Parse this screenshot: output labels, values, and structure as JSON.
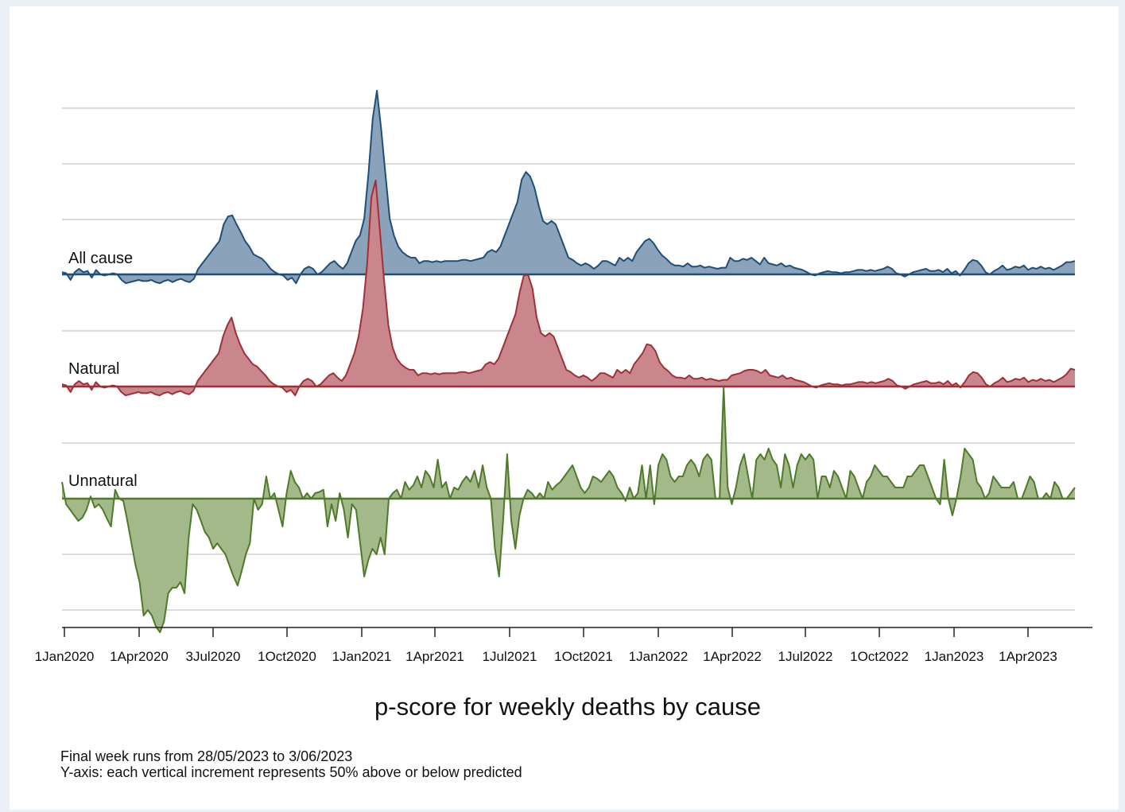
{
  "chart_data": {
    "type": "area",
    "xlabel": "p-score for weekly deaths by cause",
    "x_ticks": [
      "1Jan2020",
      "1Apr2020",
      "3Jul2020",
      "1Oct2020",
      "1Jan2021",
      "1Apr2021",
      "1Jul2021",
      "1Oct2021",
      "1Jan2022",
      "1Apr2022",
      "1Jul2022",
      "1Oct2022",
      "1Jan2023",
      "1Apr2023"
    ],
    "y_increment_percent": 50,
    "grid": true,
    "series": [
      {
        "name": "All cause",
        "color": "#1f4e79",
        "fill": "#8aa3bb",
        "values": [
          0.02,
          0.01,
          -0.05,
          0.02,
          0.05,
          0.02,
          0.03,
          -0.03,
          0.04,
          0.0,
          -0.01,
          0.0,
          0.01,
          0.0,
          -0.05,
          -0.08,
          -0.07,
          -0.06,
          -0.05,
          -0.06,
          -0.06,
          -0.05,
          -0.07,
          -0.08,
          -0.06,
          -0.05,
          -0.07,
          -0.05,
          -0.04,
          -0.06,
          -0.07,
          -0.04,
          0.05,
          0.1,
          0.15,
          0.2,
          0.25,
          0.3,
          0.45,
          0.52,
          0.53,
          0.45,
          0.38,
          0.3,
          0.25,
          0.18,
          0.16,
          0.14,
          0.1,
          0.05,
          0.02,
          0.0,
          -0.01,
          -0.05,
          -0.03,
          -0.08,
          0.0,
          0.05,
          0.07,
          0.05,
          0.0,
          0.02,
          0.06,
          0.1,
          0.12,
          0.08,
          0.05,
          0.1,
          0.2,
          0.3,
          0.35,
          0.5,
          0.9,
          1.4,
          1.65,
          1.3,
          0.9,
          0.5,
          0.35,
          0.25,
          0.2,
          0.17,
          0.15,
          0.15,
          0.1,
          0.12,
          0.12,
          0.11,
          0.12,
          0.11,
          0.12,
          0.12,
          0.12,
          0.12,
          0.13,
          0.13,
          0.12,
          0.13,
          0.14,
          0.15,
          0.2,
          0.22,
          0.2,
          0.25,
          0.35,
          0.45,
          0.55,
          0.65,
          0.85,
          0.92,
          0.88,
          0.78,
          0.62,
          0.48,
          0.45,
          0.48,
          0.45,
          0.35,
          0.25,
          0.15,
          0.13,
          0.1,
          0.08,
          0.1,
          0.08,
          0.05,
          0.08,
          0.12,
          0.12,
          0.1,
          0.08,
          0.15,
          0.12,
          0.15,
          0.12,
          0.2,
          0.25,
          0.3,
          0.32,
          0.28,
          0.22,
          0.17,
          0.14,
          0.1,
          0.08,
          0.08,
          0.07,
          0.1,
          0.07,
          0.07,
          0.08,
          0.06,
          0.07,
          0.06,
          0.05,
          0.06,
          0.06,
          0.15,
          0.12,
          0.12,
          0.14,
          0.13,
          0.15,
          0.12,
          0.09,
          0.15,
          0.1,
          0.09,
          0.08,
          0.1,
          0.07,
          0.08,
          0.06,
          0.05,
          0.04,
          0.02,
          0.0,
          -0.01,
          0.01,
          0.02,
          0.03,
          0.02,
          0.02,
          0.01,
          0.02,
          0.02,
          0.03,
          0.04,
          0.04,
          0.03,
          0.04,
          0.03,
          0.04,
          0.05,
          0.07,
          0.05,
          0.01,
          0.0,
          -0.02,
          0.0,
          0.02,
          0.03,
          0.04,
          0.05,
          0.03,
          0.03,
          0.04,
          0.02,
          0.05,
          0.01,
          0.03,
          -0.01,
          0.04,
          0.1,
          0.13,
          0.12,
          0.08,
          0.02,
          0.0,
          0.03,
          0.05,
          0.08,
          0.04,
          0.05,
          0.07,
          0.06,
          0.08,
          0.04,
          0.06,
          0.05,
          0.07,
          0.05,
          0.06,
          0.04,
          0.06,
          0.08,
          0.11,
          0.11,
          0.12
        ]
      },
      {
        "name": "Natural",
        "color": "#a03038",
        "fill": "#c9878d",
        "values": [
          0.02,
          0.01,
          -0.05,
          0.02,
          0.05,
          0.02,
          0.03,
          -0.03,
          0.04,
          0.0,
          -0.01,
          0.0,
          0.01,
          0.0,
          -0.05,
          -0.08,
          -0.07,
          -0.06,
          -0.05,
          -0.06,
          -0.06,
          -0.05,
          -0.07,
          -0.08,
          -0.06,
          -0.05,
          -0.07,
          -0.05,
          -0.04,
          -0.06,
          -0.07,
          -0.04,
          0.05,
          0.1,
          0.15,
          0.2,
          0.25,
          0.3,
          0.45,
          0.55,
          0.62,
          0.48,
          0.38,
          0.3,
          0.25,
          0.2,
          0.18,
          0.14,
          0.1,
          0.05,
          0.02,
          0.0,
          -0.01,
          -0.05,
          -0.03,
          -0.08,
          0.0,
          0.05,
          0.07,
          0.05,
          0.0,
          0.02,
          0.06,
          0.1,
          0.12,
          0.08,
          0.05,
          0.1,
          0.2,
          0.3,
          0.45,
          0.7,
          1.1,
          1.7,
          1.85,
          1.4,
          0.95,
          0.55,
          0.35,
          0.25,
          0.2,
          0.17,
          0.15,
          0.15,
          0.1,
          0.12,
          0.12,
          0.11,
          0.12,
          0.11,
          0.12,
          0.12,
          0.12,
          0.12,
          0.13,
          0.13,
          0.12,
          0.13,
          0.14,
          0.15,
          0.2,
          0.22,
          0.2,
          0.25,
          0.35,
          0.45,
          0.55,
          0.65,
          0.85,
          1.0,
          1.0,
          0.88,
          0.62,
          0.48,
          0.45,
          0.48,
          0.45,
          0.35,
          0.25,
          0.15,
          0.13,
          0.1,
          0.08,
          0.1,
          0.08,
          0.05,
          0.08,
          0.12,
          0.12,
          0.1,
          0.08,
          0.15,
          0.12,
          0.15,
          0.12,
          0.2,
          0.25,
          0.3,
          0.38,
          0.37,
          0.32,
          0.22,
          0.17,
          0.14,
          0.1,
          0.08,
          0.08,
          0.07,
          0.1,
          0.07,
          0.07,
          0.08,
          0.06,
          0.07,
          0.06,
          0.05,
          0.06,
          0.06,
          0.1,
          0.11,
          0.12,
          0.14,
          0.15,
          0.15,
          0.14,
          0.12,
          0.15,
          0.1,
          0.09,
          0.08,
          0.1,
          0.07,
          0.08,
          0.06,
          0.05,
          0.04,
          0.02,
          0.0,
          -0.01,
          0.01,
          0.02,
          0.03,
          0.02,
          0.02,
          0.01,
          0.02,
          0.02,
          0.03,
          0.04,
          0.04,
          0.03,
          0.04,
          0.03,
          0.04,
          0.05,
          0.07,
          0.05,
          0.01,
          0.0,
          -0.02,
          0.0,
          0.02,
          0.03,
          0.04,
          0.05,
          0.03,
          0.03,
          0.04,
          0.02,
          0.05,
          0.01,
          0.03,
          -0.01,
          0.04,
          0.1,
          0.13,
          0.12,
          0.08,
          0.02,
          0.0,
          0.03,
          0.05,
          0.08,
          0.04,
          0.05,
          0.07,
          0.06,
          0.08,
          0.04,
          0.06,
          0.05,
          0.07,
          0.05,
          0.06,
          0.04,
          0.06,
          0.08,
          0.11,
          0.16,
          0.15
        ]
      },
      {
        "name": "Unnatural",
        "color": "#4e7a2a",
        "fill": "#a3b98a",
        "values": [
          0.15,
          -0.05,
          -0.1,
          -0.15,
          -0.2,
          -0.17,
          -0.1,
          0.02,
          -0.08,
          -0.05,
          -0.1,
          -0.18,
          -0.25,
          0.08,
          0.0,
          -0.02,
          -0.2,
          -0.4,
          -0.6,
          -0.75,
          -1.05,
          -1.0,
          -1.05,
          -1.15,
          -1.2,
          -1.1,
          -0.85,
          -0.8,
          -0.8,
          -0.75,
          -0.85,
          -0.35,
          -0.05,
          -0.1,
          -0.2,
          -0.3,
          -0.35,
          -0.45,
          -0.4,
          -0.45,
          -0.5,
          -0.6,
          -0.7,
          -0.78,
          -0.65,
          -0.5,
          -0.4,
          0.0,
          -0.1,
          -0.05,
          0.2,
          0.0,
          0.05,
          -0.1,
          -0.25,
          0.05,
          0.25,
          0.15,
          0.1,
          0.0,
          0.05,
          0.0,
          0.05,
          0.06,
          0.08,
          -0.25,
          -0.05,
          -0.2,
          0.05,
          -0.1,
          -0.35,
          -0.05,
          -0.1,
          -0.4,
          -0.7,
          -0.55,
          -0.45,
          -0.5,
          -0.35,
          -0.5,
          0.0,
          0.05,
          0.08,
          0.0,
          0.15,
          0.08,
          0.12,
          0.2,
          0.1,
          0.25,
          0.2,
          0.1,
          0.35,
          0.1,
          0.15,
          0.0,
          0.1,
          0.08,
          0.15,
          0.2,
          0.15,
          0.25,
          0.1,
          0.3,
          0.1,
          0.0,
          -0.45,
          -0.7,
          -0.2,
          0.4,
          -0.2,
          -0.45,
          -0.15,
          0.0,
          0.08,
          0.05,
          0.0,
          0.05,
          0.0,
          0.15,
          0.08,
          0.12,
          0.15,
          0.2,
          0.25,
          0.3,
          0.2,
          0.1,
          0.05,
          0.1,
          0.2,
          0.18,
          0.15,
          0.2,
          0.25,
          0.2,
          0.1,
          0.05,
          -0.02,
          0.1,
          0.0,
          0.05,
          0.3,
          0.0,
          0.3,
          -0.05,
          0.3,
          0.4,
          0.35,
          0.2,
          0.15,
          0.2,
          0.2,
          0.3,
          0.35,
          0.3,
          0.2,
          0.35,
          0.4,
          0.35,
          0.0,
          0.0,
          1.0,
          0.1,
          -0.05,
          0.1,
          0.3,
          0.4,
          0.2,
          0.0,
          0.35,
          0.4,
          0.35,
          0.45,
          0.35,
          0.3,
          0.1,
          0.4,
          0.3,
          0.1,
          0.3,
          0.4,
          0.35,
          0.4,
          0.35,
          0.0,
          0.2,
          0.2,
          0.1,
          0.25,
          0.2,
          0.1,
          0.0,
          0.25,
          0.2,
          0.1,
          0.0,
          0.15,
          0.2,
          0.3,
          0.25,
          0.2,
          0.2,
          0.15,
          0.1,
          0.1,
          0.1,
          0.2,
          0.2,
          0.25,
          0.3,
          0.3,
          0.2,
          0.1,
          0.0,
          -0.05,
          0.35,
          0.0,
          -0.15,
          0.0,
          0.2,
          0.45,
          0.4,
          0.35,
          0.15,
          0.1,
          0.0,
          0.05,
          0.2,
          0.15,
          0.1,
          0.1,
          0.1,
          0.15,
          0.0,
          0.0,
          0.1,
          0.2,
          0.15,
          0.0,
          0.0,
          0.05,
          0.0,
          0.15,
          0.1,
          0.0,
          0.0,
          0.05,
          0.1
        ]
      }
    ]
  },
  "notes": [
    "Final week runs from 28/05/2023 to  3/06/2023",
    "Y-axis: each vertical increment represents 50% above or below predicted"
  ]
}
